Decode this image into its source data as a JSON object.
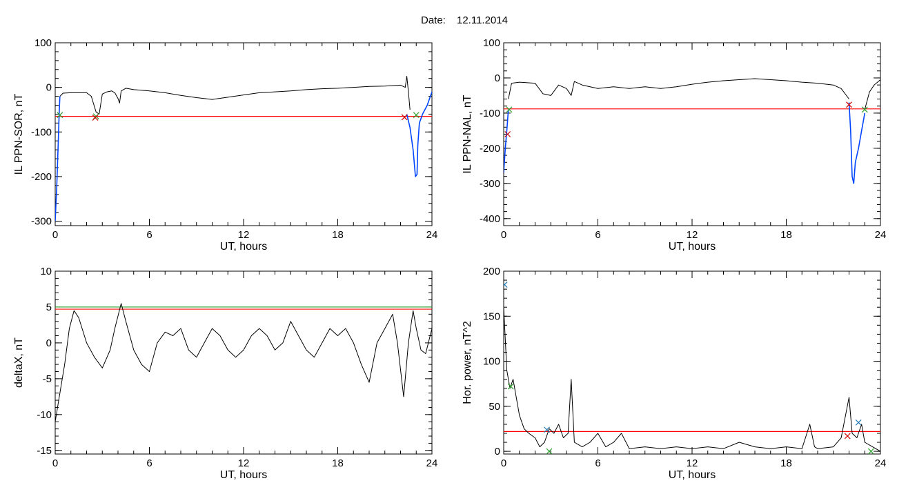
{
  "figure": {
    "date_label": "Date:",
    "date_value": "12.11.2014"
  },
  "chart_data": [
    {
      "id": "p1",
      "type": "line",
      "ylabel": "IL PPN-SOR, nT",
      "xlabel": "UT, hours",
      "xlim": [
        0,
        24
      ],
      "ylim": [
        -310,
        100
      ],
      "xticks": [
        0,
        6,
        12,
        18,
        24
      ],
      "yticks": [
        -300,
        -200,
        -100,
        0,
        100
      ],
      "minor_y": 20,
      "minor_x": 1,
      "threshold": {
        "color": "#ff0000",
        "value": -65
      },
      "series": [
        {
          "color": "#000000",
          "points": [
            [
              0.3,
              -20
            ],
            [
              0.5,
              -13
            ],
            [
              1,
              -12
            ],
            [
              2,
              -12
            ],
            [
              2.3,
              -20
            ],
            [
              2.6,
              -55
            ],
            [
              2.8,
              -60
            ],
            [
              3.0,
              -15
            ],
            [
              3.3,
              -10
            ],
            [
              3.6,
              -8
            ],
            [
              3.8,
              -12
            ],
            [
              4.0,
              -25
            ],
            [
              4.1,
              -35
            ],
            [
              4.2,
              -8
            ],
            [
              4.5,
              -2
            ],
            [
              5,
              -5
            ],
            [
              6,
              -8
            ],
            [
              7,
              -12
            ],
            [
              8,
              -18
            ],
            [
              9,
              -23
            ],
            [
              10,
              -27
            ],
            [
              11,
              -22
            ],
            [
              12,
              -17
            ],
            [
              13,
              -12
            ],
            [
              14,
              -10
            ],
            [
              15,
              -8
            ],
            [
              16,
              -5
            ],
            [
              17,
              -3
            ],
            [
              18,
              -2
            ],
            [
              19,
              0
            ],
            [
              20,
              2
            ],
            [
              21,
              3
            ],
            [
              22,
              5
            ],
            [
              22.3,
              0
            ],
            [
              22.4,
              25
            ],
            [
              22.5,
              -10
            ],
            [
              22.6,
              -50
            ]
          ]
        },
        {
          "color": "#0044ff",
          "points": [
            [
              0,
              -300
            ],
            [
              0.1,
              -220
            ],
            [
              0.2,
              -120
            ],
            [
              0.25,
              -60
            ],
            [
              0.3,
              -20
            ]
          ]
        },
        {
          "color": "#0044ff",
          "points": [
            [
              22.4,
              -60
            ],
            [
              22.6,
              -90
            ],
            [
              22.8,
              -140
            ],
            [
              22.95,
              -200
            ],
            [
              23.05,
              -195
            ],
            [
              23.1,
              -130
            ],
            [
              23.2,
              -80
            ],
            [
              23.4,
              -60
            ],
            [
              23.7,
              -40
            ],
            [
              23.9,
              -20
            ],
            [
              24,
              -10
            ]
          ]
        }
      ],
      "markers": [
        {
          "x": 0.3,
          "y": -62,
          "color": "#2ca02c"
        },
        {
          "x": 2.6,
          "y": -65,
          "color": "#2ca02c"
        },
        {
          "x": 2.55,
          "y": -68,
          "color": "#cc0000"
        },
        {
          "x": 22.25,
          "y": -67,
          "color": "#cc0000"
        },
        {
          "x": 23.0,
          "y": -62,
          "color": "#2ca02c"
        }
      ]
    },
    {
      "id": "p2",
      "type": "line",
      "ylabel": "IL PPN-NAL, nT",
      "xlabel": "UT, hours",
      "xlim": [
        0,
        24
      ],
      "ylim": [
        -420,
        100
      ],
      "xticks": [
        0,
        6,
        12,
        18,
        24
      ],
      "yticks": [
        -400,
        -300,
        -200,
        -100,
        0,
        100
      ],
      "minor_y": 20,
      "minor_x": 1,
      "threshold": {
        "color": "#ff0000",
        "value": -88
      },
      "series": [
        {
          "color": "#000000",
          "points": [
            [
              0.3,
              -60
            ],
            [
              0.5,
              -15
            ],
            [
              1,
              -12
            ],
            [
              2,
              -15
            ],
            [
              2.5,
              -45
            ],
            [
              3,
              -50
            ],
            [
              3.5,
              -20
            ],
            [
              4,
              -30
            ],
            [
              4.3,
              -50
            ],
            [
              4.5,
              -10
            ],
            [
              5,
              -20
            ],
            [
              6,
              -30
            ],
            [
              7,
              -25
            ],
            [
              8,
              -30
            ],
            [
              9,
              -25
            ],
            [
              10,
              -30
            ],
            [
              11,
              -25
            ],
            [
              12,
              -18
            ],
            [
              13,
              -12
            ],
            [
              14,
              -8
            ],
            [
              15,
              -5
            ],
            [
              16,
              -2
            ],
            [
              17,
              -5
            ],
            [
              18,
              -8
            ],
            [
              19,
              -12
            ],
            [
              20,
              -15
            ],
            [
              21,
              -20
            ],
            [
              21.5,
              -30
            ],
            [
              22,
              -60
            ]
          ]
        },
        {
          "color": "#0044ff",
          "points": [
            [
              0,
              -270
            ],
            [
              0.1,
              -200
            ],
            [
              0.2,
              -150
            ],
            [
              0.3,
              -90
            ]
          ]
        },
        {
          "color": "#0044ff",
          "points": [
            [
              22,
              -70
            ],
            [
              22.1,
              -150
            ],
            [
              22.2,
              -280
            ],
            [
              22.3,
              -300
            ],
            [
              22.4,
              -240
            ],
            [
              22.6,
              -200
            ],
            [
              22.8,
              -150
            ],
            [
              23,
              -100
            ]
          ]
        },
        {
          "color": "#000000",
          "points": [
            [
              23,
              -90
            ],
            [
              23.3,
              -40
            ],
            [
              23.6,
              -20
            ],
            [
              24,
              -5
            ]
          ]
        }
      ],
      "markers": [
        {
          "x": 0.35,
          "y": -90,
          "color": "#2ca02c"
        },
        {
          "x": 0.25,
          "y": -160,
          "color": "#cc0000"
        },
        {
          "x": 22.0,
          "y": -76,
          "color": "#cc0000"
        },
        {
          "x": 23.0,
          "y": -90,
          "color": "#2ca02c"
        }
      ]
    },
    {
      "id": "p3",
      "type": "line",
      "ylabel": "deltaX, nT",
      "xlabel": "UT, hours",
      "xlim": [
        0,
        24
      ],
      "ylim": [
        -15.5,
        10
      ],
      "xticks": [
        0,
        6,
        12,
        18,
        24
      ],
      "yticks": [
        -15,
        -10,
        -5,
        0,
        5,
        10
      ],
      "minor_y": 1,
      "minor_x": 1,
      "thresholds": [
        {
          "color": "#2ca02c",
          "value": 5.0
        },
        {
          "color": "#ff0000",
          "value": 4.7
        }
      ],
      "series": [
        {
          "color": "#000000",
          "points": [
            [
              0,
              -11
            ],
            [
              0.3,
              -7
            ],
            [
              0.6,
              -3
            ],
            [
              0.9,
              2
            ],
            [
              1.2,
              4.5
            ],
            [
              1.5,
              3.5
            ],
            [
              2,
              0
            ],
            [
              2.5,
              -2
            ],
            [
              3,
              -3.5
            ],
            [
              3.5,
              -1
            ],
            [
              3.8,
              2
            ],
            [
              4.2,
              5.5
            ],
            [
              4.5,
              3
            ],
            [
              5,
              -1
            ],
            [
              5.5,
              -3
            ],
            [
              6,
              -4
            ],
            [
              6.5,
              0
            ],
            [
              7,
              1.5
            ],
            [
              7.5,
              1
            ],
            [
              8,
              2
            ],
            [
              8.5,
              -1
            ],
            [
              9,
              -2
            ],
            [
              9.5,
              0
            ],
            [
              10,
              2
            ],
            [
              10.5,
              1
            ],
            [
              11,
              -1
            ],
            [
              11.5,
              -2
            ],
            [
              12,
              -1
            ],
            [
              12.5,
              1
            ],
            [
              13,
              2
            ],
            [
              13.5,
              1
            ],
            [
              14,
              -1
            ],
            [
              14.5,
              0
            ],
            [
              15,
              3
            ],
            [
              15.5,
              1
            ],
            [
              16,
              -1
            ],
            [
              16.5,
              -2
            ],
            [
              17,
              0
            ],
            [
              17.5,
              2
            ],
            [
              18,
              1
            ],
            [
              18.5,
              2
            ],
            [
              19,
              0
            ],
            [
              19.5,
              -3
            ],
            [
              20,
              -5.5
            ],
            [
              20.5,
              0
            ],
            [
              21,
              2
            ],
            [
              21.5,
              4
            ],
            [
              21.8,
              0
            ],
            [
              22.2,
              -7.5
            ],
            [
              22.5,
              0
            ],
            [
              22.8,
              4.5
            ],
            [
              23,
              2
            ],
            [
              23.3,
              -1
            ],
            [
              23.6,
              -1.5
            ],
            [
              24,
              2
            ]
          ]
        }
      ],
      "markers": []
    },
    {
      "id": "p4",
      "type": "line",
      "ylabel": "Hor. power, nT^2",
      "xlabel": "UT, hours",
      "xlim": [
        0,
        24
      ],
      "ylim": [
        -3,
        200
      ],
      "xticks": [
        0,
        6,
        12,
        18,
        24
      ],
      "yticks": [
        0,
        50,
        100,
        150,
        200
      ],
      "minor_y": 10,
      "minor_x": 1,
      "threshold": {
        "color": "#ff0000",
        "value": 22
      },
      "series": [
        {
          "color": "#000000",
          "points": [
            [
              0,
              160
            ],
            [
              0.2,
              90
            ],
            [
              0.4,
              70
            ],
            [
              0.6,
              80
            ],
            [
              0.8,
              60
            ],
            [
              1,
              40
            ],
            [
              1.3,
              25
            ],
            [
              1.6,
              20
            ],
            [
              2,
              15
            ],
            [
              2.3,
              5
            ],
            [
              2.6,
              10
            ],
            [
              2.9,
              25
            ],
            [
              3.2,
              20
            ],
            [
              3.5,
              30
            ],
            [
              3.8,
              15
            ],
            [
              4.1,
              20
            ],
            [
              4.3,
              80
            ],
            [
              4.5,
              10
            ],
            [
              5,
              5
            ],
            [
              5.5,
              10
            ],
            [
              6,
              20
            ],
            [
              6.5,
              5
            ],
            [
              7,
              10
            ],
            [
              7.5,
              20
            ],
            [
              8,
              3
            ],
            [
              9,
              5
            ],
            [
              10,
              3
            ],
            [
              11,
              5
            ],
            [
              12,
              3
            ],
            [
              13,
              5
            ],
            [
              14,
              3
            ],
            [
              15,
              10
            ],
            [
              16,
              5
            ],
            [
              17,
              3
            ],
            [
              18,
              5
            ],
            [
              19,
              3
            ],
            [
              19.5,
              30
            ],
            [
              19.8,
              5
            ],
            [
              20,
              3
            ],
            [
              21,
              5
            ],
            [
              21.5,
              15
            ],
            [
              22,
              60
            ],
            [
              22.2,
              20
            ],
            [
              22.5,
              15
            ],
            [
              22.8,
              30
            ],
            [
              23,
              10
            ],
            [
              23.5,
              5
            ],
            [
              24,
              0
            ]
          ]
        }
      ],
      "markers": [
        {
          "x": 0.05,
          "y": 185,
          "color": "#1f77b4"
        },
        {
          "x": 0.45,
          "y": 72,
          "color": "#2ca02c"
        },
        {
          "x": 2.75,
          "y": 24,
          "color": "#1f77b4"
        },
        {
          "x": 2.9,
          "y": 0,
          "color": "#2ca02c"
        },
        {
          "x": 21.9,
          "y": 17,
          "color": "#cc0000"
        },
        {
          "x": 22.6,
          "y": 32,
          "color": "#1f77b4"
        },
        {
          "x": 23.4,
          "y": 0,
          "color": "#2ca02c"
        }
      ]
    }
  ]
}
